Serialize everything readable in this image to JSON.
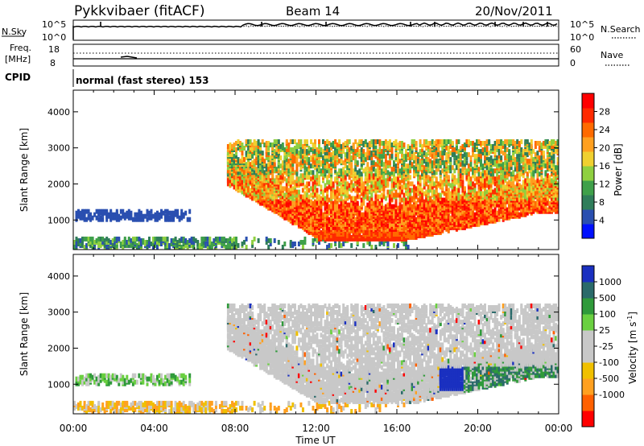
{
  "header": {
    "station": "Pykkvibaer (fitACF)",
    "beam": "Beam 14",
    "date": "20/Nov/2011"
  },
  "nsky_panel": {
    "left_label": "N.Sky",
    "right_label": "N.Search",
    "left_ticks": [
      "10^5",
      "10^0"
    ],
    "right_ticks": [
      "10^5",
      "10^0"
    ]
  },
  "freq_panel": {
    "left_label_1": "Freq.",
    "left_label_2": "[MHz]",
    "right_label": "Nave",
    "left_ticks": [
      "18",
      "8"
    ],
    "right_ticks": [
      "60",
      "0"
    ]
  },
  "cpid": {
    "label": "CPID",
    "value": "normal (fast stereo) 153"
  },
  "colors": {
    "power": [
      "#0010ff",
      "#2a4fb0",
      "#2f7d5a",
      "#3fa04a",
      "#8fd040",
      "#f0d030",
      "#ffa020",
      "#ff6a00",
      "#ff2a00",
      "#ff0000"
    ],
    "velocity": [
      "#ff0000",
      "#ff6000",
      "#ffa020",
      "#f0c000",
      "#c8c8c8",
      "#c8c8c8",
      "#6ad040",
      "#2f9a3a",
      "#2a6a6a",
      "#1a30c0"
    ],
    "grey": "#c8c8c8"
  },
  "chart_data": [
    {
      "type": "heatmap",
      "name": "power",
      "ylabel": "Slant Range [km]",
      "ylim": [
        180,
        4600
      ],
      "y_ticks": [
        1000,
        2000,
        3000,
        4000
      ],
      "xlim_hours": [
        0,
        24
      ],
      "colorbar": {
        "label": "Power [dB]",
        "ticks": [
          "4",
          "8",
          "12",
          "16",
          "20",
          "24",
          "28"
        ],
        "range": [
          0,
          32
        ]
      }
    },
    {
      "type": "heatmap",
      "name": "velocity",
      "ylabel": "Slant Range [km]",
      "ylim": [
        180,
        4600
      ],
      "y_ticks": [
        1000,
        2000,
        3000,
        4000
      ],
      "xlim_hours": [
        0,
        24
      ],
      "colorbar": {
        "label": "Velocity [m s",
        "label_sup": "-1",
        "label_end": "]",
        "ticks": [
          "1000",
          "500",
          "100",
          "25",
          "-25",
          "-100",
          "-500",
          "-1000"
        ]
      }
    }
  ],
  "x_axis": {
    "label": "Time UT",
    "tick_labels": [
      "00:00",
      "04:00",
      "08:00",
      "12:00",
      "16:00",
      "20:00",
      "00:00"
    ],
    "tick_hours": [
      0,
      4,
      8,
      12,
      16,
      20,
      24
    ]
  }
}
